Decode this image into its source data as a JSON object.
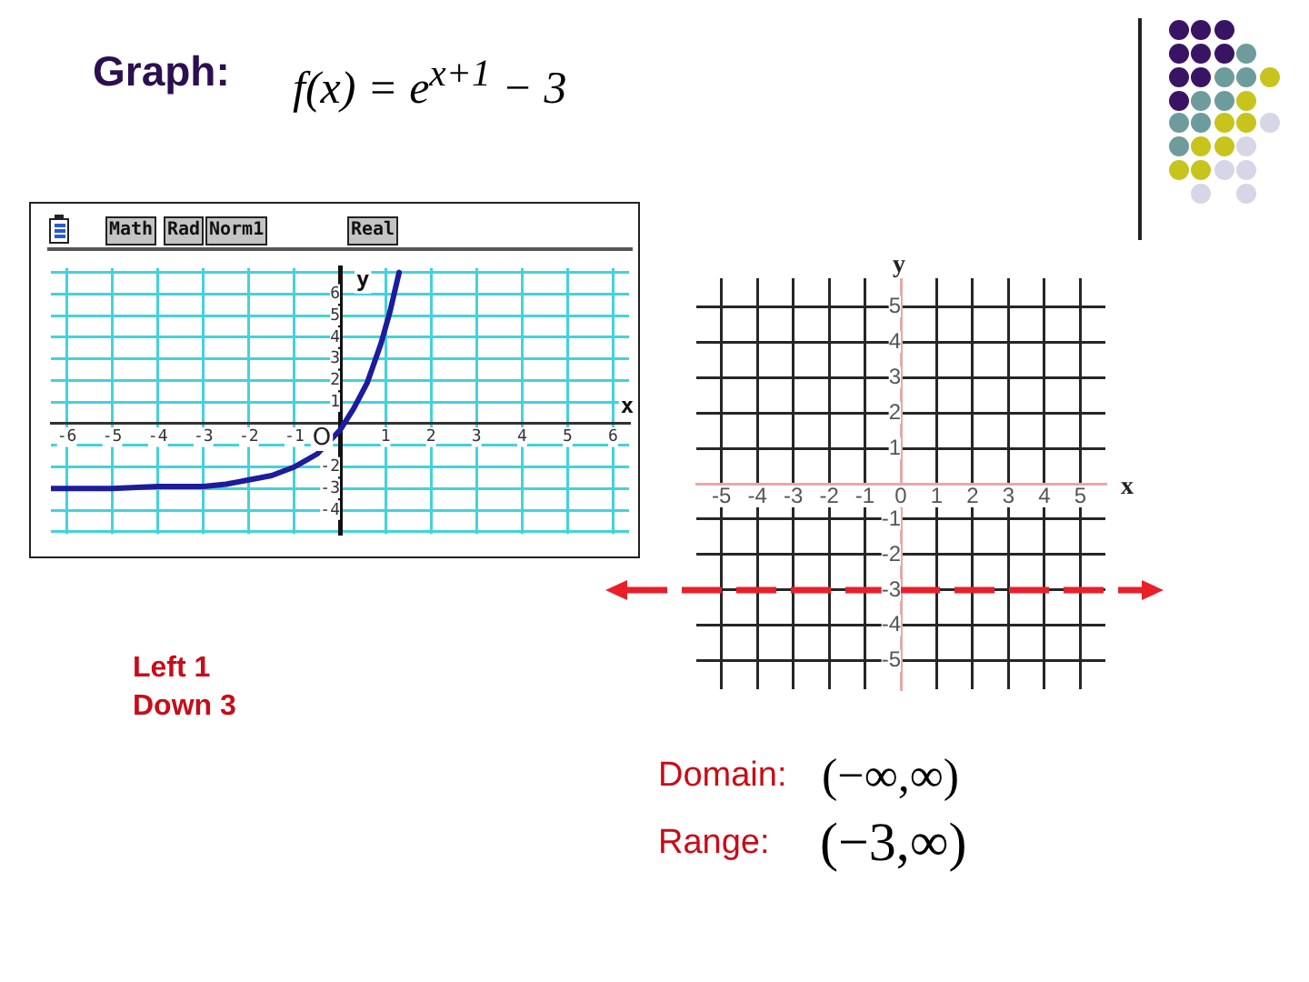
{
  "chart_data": [
    {
      "type": "line",
      "title": "Graph:",
      "subtitle": "f(x) = e$^{x+1}$ − 3",
      "xlabel": "x",
      "ylabel": "y",
      "x": [
        -6.35,
        -5,
        -4,
        -3,
        -2.5,
        -2,
        -1.5,
        -1,
        -0.5,
        0,
        0.3,
        0.6,
        0.9,
        1.1,
        1.3
      ],
      "series": [
        {
          "color": "#1c1c9c",
          "values": [
            -3,
            -3,
            -2.9,
            -2.9,
            -2.8,
            -2.6,
            -2.4,
            -2,
            -1.4,
            -0.3,
            0.7,
            1.9,
            3.7,
            5.2,
            7
          ]
        }
      ],
      "xlim": [
        -6.35,
        6.35
      ],
      "ylim": [
        -5.1,
        7.2
      ],
      "xticks": [
        -6,
        -5,
        -4,
        -3,
        -2,
        -1,
        {
          "value": 0,
          "label": null
        },
        1,
        2,
        3,
        4,
        5,
        6
      ],
      "yticks": [
        {
          "value": -5,
          "label": null
        },
        -4,
        -3,
        -2,
        {
          "value": -1,
          "label": null
        },
        {
          "value": 0,
          "label": null
        },
        1,
        2,
        3,
        4,
        5,
        6,
        {
          "value": 7,
          "label": null
        }
      ],
      "grid": true,
      "legend": false,
      "marker": "none",
      "line_style": "solid",
      "annotations": [
        "Math",
        "Rad",
        "Norm1",
        "Real",
        {
          "text": "O",
          "x": 0,
          "y": 0
        }
      ]
    },
    {
      "type": "line",
      "xlabel": "x",
      "ylabel": "y",
      "xlim": [
        -5.7,
        5.7
      ],
      "ylim": [
        -5.8,
        5.8
      ],
      "xticks": [
        -5,
        -4,
        -3,
        -2,
        -1,
        0,
        1,
        2,
        3,
        4,
        5
      ],
      "yticks": [
        -5,
        -4,
        -3,
        -2,
        -1,
        {
          "value": 0,
          "label": null
        },
        1,
        2,
        3,
        4,
        5
      ],
      "grid": true,
      "legend": false,
      "ref_lines": [
        {
          "axis": "y",
          "value": -3,
          "color": "#e8202a",
          "line_style": "dashed"
        }
      ],
      "annotations": [
        "Left 1",
        "Down 3",
        "Domain:",
        "(−∞,∞)",
        "Range:",
        "(−3,∞)"
      ]
    }
  ]
}
